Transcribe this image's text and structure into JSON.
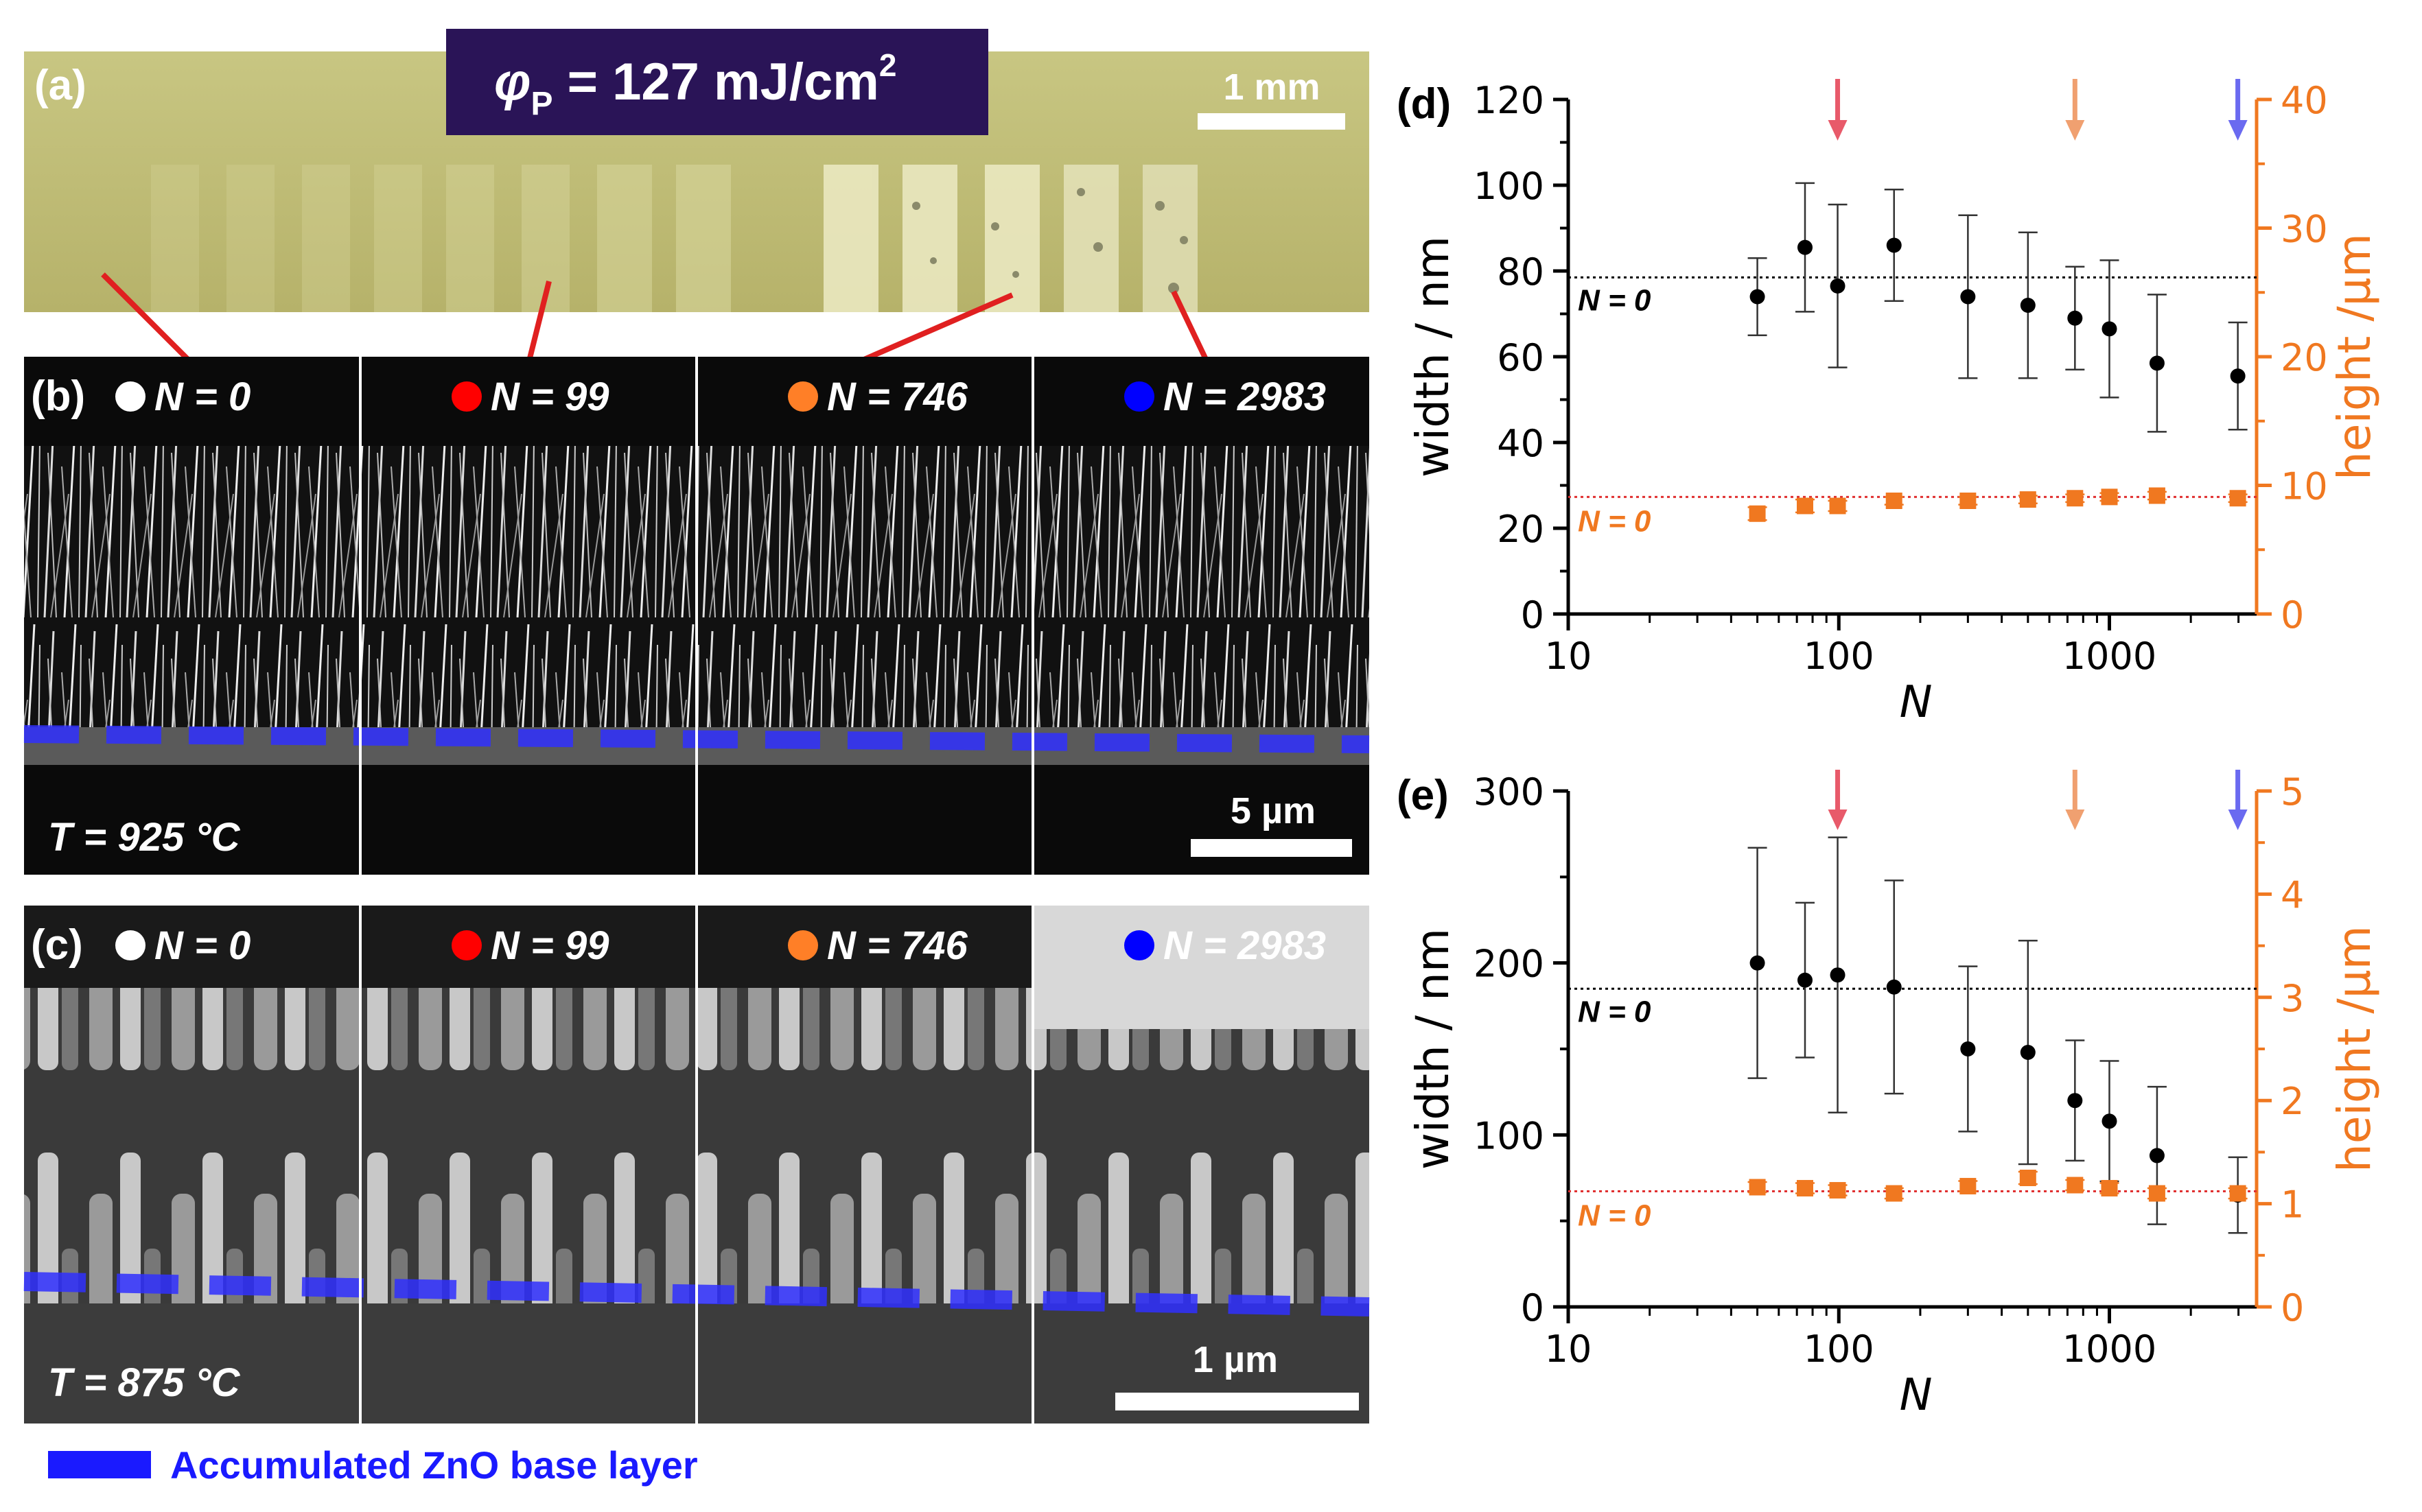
{
  "panel_a": {
    "label": "(a)",
    "fluence_symbol": "φ",
    "fluence_sub": "P",
    "fluence_value": " = 127 mJ/cm",
    "fluence_sup": "2",
    "scalebar": "1 mm"
  },
  "panel_b": {
    "label": "(b)",
    "temperature": "T = 925 °C",
    "scalebar": "5 µm",
    "samples": [
      {
        "N_text": "N = 0",
        "dot_color": "#ffffff"
      },
      {
        "N_text": "N = 99",
        "dot_color": "#ff0000"
      },
      {
        "N_text": "N = 746",
        "dot_color": "#ff7f27"
      },
      {
        "N_text": "N = 2983",
        "dot_color": "#0000ff"
      }
    ]
  },
  "panel_c": {
    "label": "(c)",
    "temperature": "T = 875 °C",
    "scalebar": "1 µm",
    "samples": [
      {
        "N_text": "N = 0",
        "dot_color": "#ffffff"
      },
      {
        "N_text": "N = 99",
        "dot_color": "#ff0000"
      },
      {
        "N_text": "N = 746",
        "dot_color": "#ff7f27"
      },
      {
        "N_text": "N = 2983",
        "dot_color": "#0000ff"
      }
    ]
  },
  "legend": {
    "swatch_color": "#1a1aff",
    "text": "Accumulated ZnO base layer"
  },
  "colors": {
    "width_series": "#000000",
    "height_series": "#f07820",
    "arrow_red": "#e85a6a",
    "arrow_orange": "#f0a070",
    "arrow_blue": "#6a6af0",
    "title_box": "#2a1457"
  },
  "chart_data": [
    {
      "panel": "(d)",
      "type": "scatter",
      "xscale": "log",
      "xlim": [
        10,
        3500
      ],
      "xticks": [
        10,
        100,
        1000
      ],
      "xlabel": "N",
      "ylabel": "width / nm",
      "ylim": [
        0,
        120
      ],
      "yticks": [
        0,
        20,
        40,
        60,
        80,
        100,
        120
      ],
      "y2label": "height /µm",
      "y2lim": [
        0,
        40
      ],
      "y2ticks": [
        0,
        10,
        20,
        30,
        40
      ],
      "reference_lines": [
        {
          "label": "N = 0",
          "axis": "left",
          "value": 78.5,
          "color": "#000000"
        },
        {
          "label": "N = 0",
          "axis": "right",
          "value": 9.1,
          "color": "#e03030"
        }
      ],
      "arrows_at_N": [
        99,
        746,
        2983
      ],
      "series": [
        {
          "name": "width",
          "axis": "left",
          "x": [
            50,
            75,
            99,
            160,
            300,
            500,
            746,
            1000,
            1500,
            2983
          ],
          "y": [
            74,
            85.5,
            76.5,
            86,
            74,
            72,
            69,
            66.5,
            58.5,
            55.5
          ],
          "err": [
            9,
            15,
            19,
            13,
            19,
            17,
            12,
            16,
            16,
            12.5
          ]
        },
        {
          "name": "height",
          "axis": "right",
          "x": [
            50,
            75,
            99,
            160,
            300,
            500,
            746,
            1000,
            1500,
            2983
          ],
          "y": [
            7.8,
            8.4,
            8.4,
            8.8,
            8.8,
            8.9,
            9.0,
            9.1,
            9.2,
            9.0
          ],
          "err": [
            0.5,
            0.5,
            0.4,
            0.3,
            0.3,
            0.3,
            0.3,
            0.3,
            0.3,
            0.3
          ]
        }
      ]
    },
    {
      "panel": "(e)",
      "type": "scatter",
      "xscale": "log",
      "xlim": [
        10,
        3500
      ],
      "xticks": [
        10,
        100,
        1000
      ],
      "xlabel": "N",
      "ylabel": "width / nm",
      "ylim": [
        0,
        300
      ],
      "yticks": [
        0,
        100,
        200,
        300
      ],
      "y2label": "height /µm",
      "y2lim": [
        0,
        5
      ],
      "y2ticks": [
        0,
        1,
        2,
        3,
        4,
        5
      ],
      "reference_lines": [
        {
          "label": "N = 0",
          "axis": "left",
          "value": 185,
          "color": "#000000"
        },
        {
          "label": "N = 0",
          "axis": "right",
          "value": 1.12,
          "color": "#e03030"
        }
      ],
      "arrows_at_N": [
        99,
        746,
        2983
      ],
      "series": [
        {
          "name": "width",
          "axis": "left",
          "x": [
            50,
            75,
            99,
            160,
            300,
            500,
            746,
            1000,
            1500,
            2983
          ],
          "y": [
            200,
            190,
            193,
            186,
            150,
            148,
            120,
            108,
            88,
            65
          ],
          "err": [
            67,
            45,
            80,
            62,
            48,
            65,
            35,
            35,
            40,
            22
          ]
        },
        {
          "name": "height",
          "axis": "right",
          "x": [
            50,
            75,
            99,
            160,
            300,
            500,
            746,
            1000,
            1500,
            2983
          ],
          "y": [
            1.16,
            1.15,
            1.13,
            1.1,
            1.17,
            1.25,
            1.18,
            1.15,
            1.1,
            1.1
          ],
          "err": [
            0.05,
            0.05,
            0.05,
            0.05,
            0.05,
            0.06,
            0.05,
            0.05,
            0.05,
            0.05
          ]
        }
      ]
    }
  ]
}
